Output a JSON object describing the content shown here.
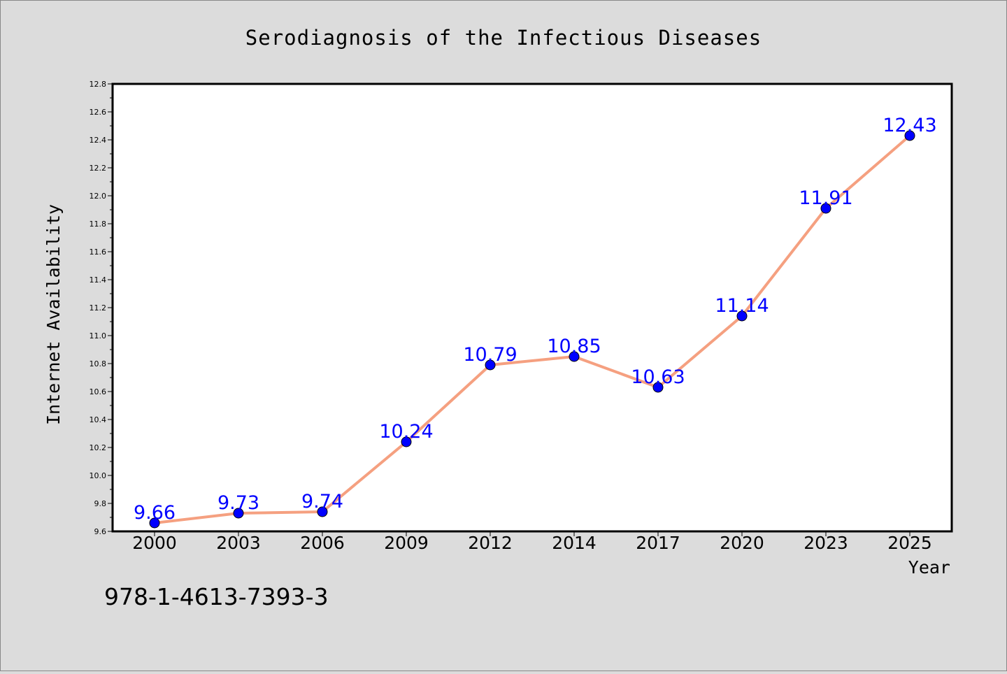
{
  "chart_data": {
    "type": "line",
    "title": "Serodiagnosis of the Infectious Diseases",
    "xlabel": "Year",
    "ylabel": "Internet Availability",
    "categories": [
      "2000",
      "2003",
      "2006",
      "2009",
      "2012",
      "2014",
      "2017",
      "2020",
      "2023",
      "2025"
    ],
    "series": [
      {
        "values": [
          9.66,
          9.73,
          9.74,
          10.24,
          10.79,
          10.85,
          10.63,
          11.14,
          11.91,
          12.43
        ],
        "labels": [
          "9.66",
          "9.73",
          "9.74",
          "10.24",
          "10.79",
          "10.85",
          "10.63",
          "11.14",
          "11.91",
          "12.43"
        ]
      }
    ],
    "ylim": [
      9.6,
      12.8
    ],
    "y_ticks": [
      "9.6",
      "9.8",
      "10.0",
      "10.2",
      "10.4",
      "10.6",
      "10.8",
      "11.0",
      "11.2",
      "11.4",
      "11.6",
      "11.8",
      "12.0",
      "12.2",
      "12.4",
      "12.6",
      "12.8"
    ],
    "y_tick_step": 0.2,
    "y_minor_step": 0.1,
    "grid": false,
    "legend": "none",
    "colors": {
      "line": "#f5a080",
      "marker": "#0000ff",
      "marker_edge": "#000000",
      "data_label": "#0000ff",
      "plot_background": "#ffffff",
      "page_background": "#dcdcdc"
    }
  },
  "annotations": {
    "isbn": "978-1-4613-7393-3"
  }
}
